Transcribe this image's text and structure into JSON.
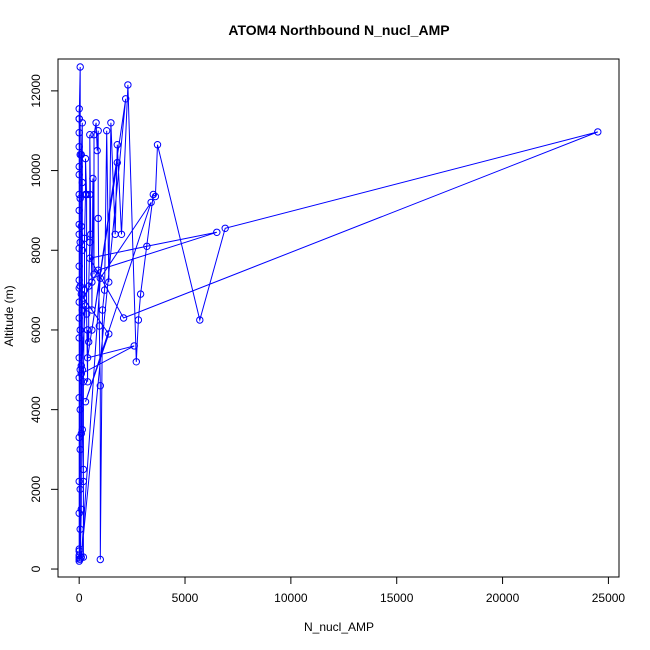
{
  "chart_data": {
    "type": "line",
    "title": "ATOM4 Northbound N_nucl_AMP",
    "xlabel": "N_nucl_AMP",
    "ylabel": "Altitude (m)",
    "xlim": [
      -1000,
      25500
    ],
    "ylim": [
      -200,
      12800
    ],
    "x_ticks": [
      0,
      5000,
      10000,
      15000,
      20000,
      25000
    ],
    "y_ticks": [
      0,
      2000,
      4000,
      6000,
      8000,
      10000,
      12000
    ],
    "grid": false,
    "series_color": "#0000ff",
    "marker": "open-circle",
    "series": [
      {
        "points": [
          [
            0,
            250
          ],
          [
            0,
            350
          ],
          [
            0,
            450
          ],
          [
            0,
            200
          ],
          [
            0,
            300
          ],
          [
            0,
            500
          ],
          [
            0,
            1400
          ],
          [
            0,
            2200
          ],
          [
            0,
            3300
          ],
          [
            0,
            4300
          ],
          [
            0,
            4800
          ],
          [
            0,
            5300
          ],
          [
            0,
            5800
          ],
          [
            0,
            6300
          ],
          [
            0,
            6700
          ],
          [
            0,
            7050
          ],
          [
            0,
            7250
          ],
          [
            0,
            7600
          ],
          [
            0,
            8050
          ],
          [
            0,
            8400
          ],
          [
            0,
            8650
          ],
          [
            0,
            9000
          ],
          [
            0,
            9400
          ],
          [
            0,
            9900
          ],
          [
            0,
            10100
          ],
          [
            0,
            10600
          ],
          [
            0,
            10950
          ],
          [
            0,
            11300
          ],
          [
            0,
            11550
          ],
          [
            0,
            11300
          ],
          [
            50,
            12600
          ],
          [
            50,
            10400
          ],
          [
            50,
            9300
          ],
          [
            50,
            8200
          ],
          [
            50,
            7100
          ],
          [
            50,
            6000
          ],
          [
            50,
            5000
          ],
          [
            50,
            4000
          ],
          [
            50,
            3000
          ],
          [
            50,
            2000
          ],
          [
            50,
            1000
          ],
          [
            50,
            250
          ],
          [
            100,
            1500
          ],
          [
            100,
            3400
          ],
          [
            100,
            5100
          ],
          [
            100,
            6900
          ],
          [
            100,
            8600
          ],
          [
            100,
            10400
          ],
          [
            150,
            11200
          ],
          [
            150,
            9700
          ],
          [
            150,
            8000
          ],
          [
            150,
            6500
          ],
          [
            150,
            5000
          ],
          [
            150,
            3500
          ],
          [
            200,
            2200
          ],
          [
            200,
            300
          ],
          [
            200,
            2500
          ],
          [
            200,
            4700
          ],
          [
            250,
            7000
          ],
          [
            250,
            8300
          ],
          [
            300,
            9400
          ],
          [
            300,
            10300
          ],
          [
            350,
            9400
          ],
          [
            350,
            6400
          ],
          [
            400,
            4700
          ],
          [
            400,
            6000
          ],
          [
            450,
            5700
          ],
          [
            450,
            7100
          ],
          [
            500,
            8200
          ],
          [
            500,
            9400
          ],
          [
            500,
            10900
          ],
          [
            550,
            8400
          ],
          [
            600,
            7200
          ],
          [
            600,
            6500
          ],
          [
            650,
            9800
          ],
          [
            700,
            7400
          ],
          [
            700,
            10900
          ],
          [
            800,
            11200
          ],
          [
            850,
            10500
          ],
          [
            900,
            11000
          ],
          [
            900,
            8800
          ],
          [
            950,
            6100
          ],
          [
            1000,
            4600
          ],
          [
            1000,
            240
          ],
          [
            1100,
            6500
          ],
          [
            1200,
            7000
          ],
          [
            1300,
            11000
          ],
          [
            1400,
            7200
          ],
          [
            1500,
            11200
          ],
          [
            1700,
            8400
          ],
          [
            1800,
            10650
          ],
          [
            2000,
            8400
          ],
          [
            2300,
            12150
          ],
          [
            2700,
            5200
          ],
          [
            2800,
            6250
          ],
          [
            2900,
            6900
          ],
          [
            3500,
            9400
          ],
          [
            3600,
            9350
          ],
          [
            3700,
            10650
          ],
          [
            5700,
            6250
          ],
          [
            6900,
            8550
          ],
          [
            24500,
            10970
          ],
          [
            2100,
            6300
          ],
          [
            500,
            7800
          ],
          [
            3200,
            8100
          ],
          [
            6500,
            8450
          ],
          [
            900,
            7500
          ],
          [
            200,
            6800
          ],
          [
            1400,
            5900
          ],
          [
            300,
            4200
          ],
          [
            3400,
            9200
          ],
          [
            1000,
            7300
          ],
          [
            100,
            300
          ],
          [
            2200,
            11800
          ],
          [
            600,
            6000
          ],
          [
            1800,
            10200
          ],
          [
            400,
            5300
          ],
          [
            2600,
            5600
          ],
          [
            100,
            4900
          ],
          [
            300,
            6600
          ]
        ]
      }
    ]
  }
}
